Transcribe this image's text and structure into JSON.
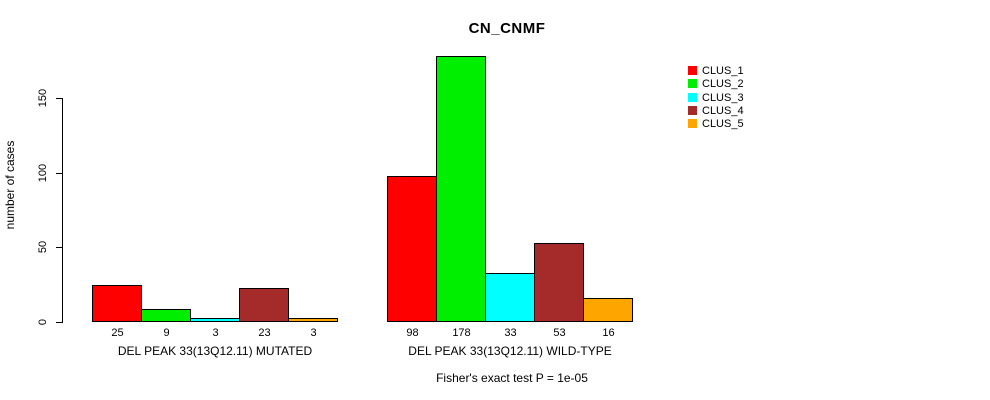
{
  "chart_data": {
    "type": "bar",
    "title": "CN_CNMF",
    "ylabel": "number of cases",
    "xlabel": "",
    "yticks": [
      0,
      50,
      100,
      150
    ],
    "ylim": [
      0,
      178
    ],
    "grid": false,
    "legend_position": "right",
    "series": [
      {
        "name": "CLUS_1",
        "color": "#FF0000"
      },
      {
        "name": "CLUS_2",
        "color": "#00EE00"
      },
      {
        "name": "CLUS_3",
        "color": "#00FFFF"
      },
      {
        "name": "CLUS_4",
        "color": "#A52A2A"
      },
      {
        "name": "CLUS_5",
        "color": "#FFA500"
      }
    ],
    "groups": [
      {
        "label": "DEL PEAK 33(13Q12.11) MUTATED",
        "values": [
          25,
          9,
          3,
          23,
          3
        ]
      },
      {
        "label": "DEL PEAK 33(13Q12.11) WILD-TYPE",
        "values": [
          98,
          178,
          33,
          53,
          16
        ]
      }
    ],
    "bar_value_labels_shown": true,
    "annotation": "Fisher's exact test P = 1e-05"
  }
}
